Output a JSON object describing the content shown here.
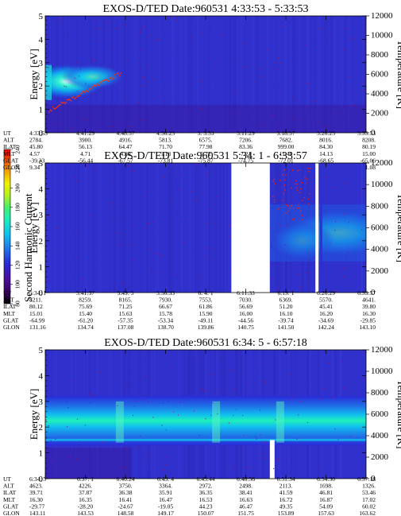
{
  "panels": [
    {
      "title": "EXOS-D/TED   Date:960531  4:33:53 - 5:33:53",
      "gap": null,
      "orbit": {
        "labels": [
          "UT",
          "ALT",
          "ILAT",
          "MLT",
          "GLAT",
          "GLON"
        ],
        "columns": [
          [
            "4:33:53",
            "2784.",
            "45.80",
            "4.57",
            "-39.33",
            "9.34"
          ],
          [
            "4:41:29",
            "3900.",
            "56.13",
            "4.71",
            "-56.44",
            "18.32"
          ],
          [
            "4:48:57",
            "4916.",
            "64.47",
            "4.89",
            "-67.57",
            "31.97"
          ],
          [
            "4:56:25",
            "5813.",
            "71.70",
            "5.18",
            "-73.81",
            "52.74"
          ],
          [
            "5: 3:53",
            "6575.",
            "77.98",
            "5.72",
            "-75.87",
            "78.91"
          ],
          [
            "5:11:29",
            "7206.",
            "83.36",
            "7.21",
            "-74.75",
            "101.93"
          ],
          [
            "5:18:57",
            "7682.",
            "999.00",
            "11.40",
            "-72.01",
            "116.63"
          ],
          [
            "5:26:25",
            "8016.",
            "84.30",
            "14.13",
            "-68.65",
            "125.55"
          ],
          [
            "5:33:53",
            "8208.",
            "80.19",
            "15.00",
            "-65.06",
            "131.08"
          ]
        ]
      }
    },
    {
      "title": "EXOS-D/TED   Date:960531  5:34: 1 - 6:33:57",
      "gap": [
        0.58,
        0.7
      ],
      "orbit": {
        "labels": [
          "UT",
          "ALT",
          "ILAT",
          "MLT",
          "GLAT",
          "GLON"
        ],
        "columns": [
          [
            "5:34: 1",
            "8211.",
            "80.12",
            "15.01",
            "-64.99",
            "131.16"
          ],
          [
            "5:41:37",
            "8259.",
            "75.69",
            "15.40",
            "-61.20",
            "134.74"
          ],
          [
            "5:49: 5",
            "8165.",
            "71.25",
            "15.63",
            "-57.35",
            "137.08"
          ],
          [
            "5:56:33",
            "7930.",
            "66.67",
            "15.78",
            "-53.34",
            "138.70"
          ],
          [
            "6: 4: 1",
            "7553.",
            "61.86",
            "15.90",
            "-49.11",
            "139.86"
          ],
          [
            "6:11:33",
            "7030.",
            "56.69",
            "16.00",
            "-44.56",
            "140.75"
          ],
          [
            "6:19: 1",
            "6369.",
            "51.20",
            "16.10",
            "-39.74",
            "141.50"
          ],
          [
            "6:26:29",
            "5570.",
            "45.41",
            "16.20",
            "-34.69",
            "142.24"
          ],
          [
            "6:33:57",
            "4641.",
            "39.80",
            "16.30",
            "-29.85",
            "143.10"
          ]
        ]
      }
    },
    {
      "title": "EXOS-D/TED   Date:960531  6:34: 5 - 6:57:18",
      "gap": null,
      "orbit": {
        "labels": [
          "UT",
          "ALT",
          "ILAT",
          "MLT",
          "GLAT",
          "GLON"
        ],
        "columns": [
          [
            "6:34: 5",
            "4623.",
            "39.71",
            "16.30",
            "-29.77",
            "143.11"
          ],
          [
            "6:37: 1",
            "4226.",
            "37.87",
            "16.35",
            "-28.20",
            "143.53"
          ],
          [
            "6:40:24",
            "3750.",
            "36.38",
            "16.41",
            "-24.67",
            "148.58"
          ],
          [
            "6:43: 4",
            "3364.",
            "35.91",
            "16.47",
            "-19.05",
            "149.17"
          ],
          [
            "6:45:44",
            "2972.",
            "36.35",
            "16.53",
            "44.23",
            "150.07"
          ],
          [
            "6:48:56",
            "2498.",
            "38.41",
            "16.63",
            "46.47",
            "151.75"
          ],
          [
            "6:51:34",
            "2113.",
            "41.59",
            "16.72",
            "49.35",
            "153.89"
          ],
          [
            "6:54:30",
            "1698.",
            "46.81",
            "16.87",
            "54.09",
            "157.63"
          ],
          [
            "6:57:18",
            "1326.",
            "53.46",
            "17.02",
            "60.02",
            "163.62"
          ]
        ]
      }
    }
  ],
  "axes": {
    "energy_label": "Energy [eV]",
    "energy_ticks": [
      "0",
      "1",
      "2",
      "3",
      "4",
      "5"
    ],
    "temp_label": "Temperature [K]",
    "temp_ticks": [
      "0",
      "2000",
      "4000",
      "6000",
      "8000",
      "10000",
      "12000"
    ]
  },
  "colorbar": {
    "label": "Second Harmonic Current",
    "ticks": [
      "80",
      "100",
      "120",
      "140",
      "160",
      "180",
      "200",
      "220",
      "240"
    ],
    "colors": [
      "#000000",
      "#3a0060",
      "#4a0f9a",
      "#2828d8",
      "#1e78e8",
      "#10c0ee",
      "#18ecc0",
      "#40f070",
      "#b0f020",
      "#f0f000",
      "#f0a000",
      "#f05000",
      "#e80000"
    ]
  },
  "chart_data": [
    {
      "type": "heatmap",
      "title": "EXOS-D/TED   Date:960531  4:33:53 - 5:33:53",
      "xlabel": "UT",
      "ylabel": "Energy [eV]",
      "y2label": "Temperature [K]",
      "xlim": [
        "4:33:53",
        "5:33:53"
      ],
      "ylim": [
        0,
        5
      ],
      "y2lim": [
        0,
        12000
      ],
      "features": "intense band near 2.2 eV from 4:33:53 to about 4:49, background near 100 elsewhere"
    },
    {
      "type": "heatmap",
      "title": "EXOS-D/TED   Date:960531  5:34: 1 - 6:33:57",
      "xlabel": "UT",
      "ylabel": "Energy [eV]",
      "y2label": "Temperature [K]",
      "xlim": [
        "5:34: 1",
        "6:33:57"
      ],
      "ylim": [
        0,
        5
      ],
      "y2lim": [
        0,
        12000
      ],
      "features": "data gap around 6:07 to 6:11, enhanced band 1.5-3 eV after 6:12 peaking near 6:33"
    },
    {
      "type": "heatmap",
      "title": "EXOS-D/TED   Date:960531  6:34: 5 - 6:57:18",
      "xlabel": "UT",
      "ylabel": "Energy [eV]",
      "y2label": "Temperature [K]",
      "xlim": [
        "6:34: 5",
        "6:57:18"
      ],
      "ylim": [
        0,
        5
      ],
      "y2lim": [
        0,
        12000
      ],
      "features": "continuous bright band centered near 2.2 eV for the whole interval"
    }
  ]
}
